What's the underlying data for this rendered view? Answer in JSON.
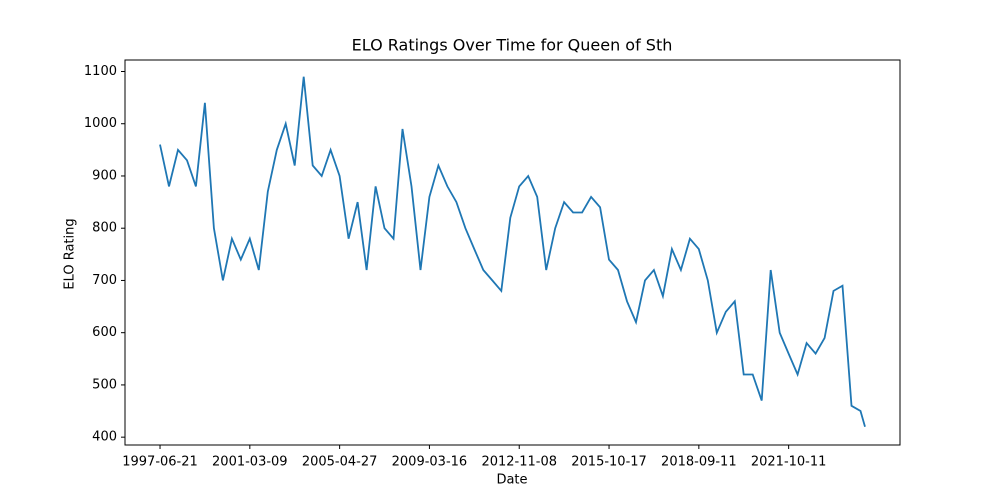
{
  "chart_data": {
    "type": "line",
    "title": "ELO Ratings Over Time for Queen of Sth",
    "x_label": "Date",
    "y_label": "ELO Rating",
    "x": [
      0,
      10,
      20,
      30,
      40,
      50,
      60,
      70,
      80,
      90,
      100,
      110,
      120,
      130,
      140,
      150,
      160,
      170,
      180,
      190,
      200,
      210,
      220,
      230,
      240,
      250,
      260,
      270,
      280,
      290,
      300,
      310,
      320,
      330,
      340,
      350,
      360,
      370,
      380,
      390,
      400,
      410,
      420,
      430,
      440,
      450,
      460,
      470,
      480,
      490,
      500,
      510,
      520,
      530,
      540,
      550,
      560,
      570,
      580,
      590,
      600,
      610,
      620,
      630,
      640,
      650,
      660,
      670,
      680,
      690,
      700,
      710,
      720,
      730,
      740,
      750,
      760,
      770,
      780,
      785
    ],
    "series": [
      {
        "color": "#1f77b4",
        "values": [
          960,
          880,
          950,
          930,
          880,
          1040,
          800,
          700,
          780,
          740,
          780,
          720,
          870,
          950,
          1000,
          920,
          1090,
          920,
          900,
          950,
          900,
          780,
          850,
          720,
          880,
          800,
          780,
          990,
          880,
          720,
          860,
          920,
          880,
          850,
          800,
          760,
          720,
          700,
          680,
          820,
          880,
          900,
          860,
          720,
          800,
          850,
          830,
          830,
          860,
          840,
          740,
          720,
          660,
          620,
          700,
          720,
          670,
          760,
          720,
          780,
          760,
          700,
          600,
          640,
          660,
          520,
          520,
          470,
          720,
          600,
          560,
          520,
          580,
          560,
          590,
          680,
          690,
          460,
          450,
          420
        ]
      }
    ],
    "xlim": [
      -39,
      824
    ],
    "ylim": [
      385,
      1122
    ],
    "xticks": [
      {
        "value": 0,
        "label": "1997-06-21"
      },
      {
        "value": 100,
        "label": "2001-03-09"
      },
      {
        "value": 200,
        "label": "2005-04-27"
      },
      {
        "value": 300,
        "label": "2009-03-16"
      },
      {
        "value": 400,
        "label": "2012-11-08"
      },
      {
        "value": 500,
        "label": "2015-10-17"
      },
      {
        "value": 600,
        "label": "2018-09-11"
      },
      {
        "value": 700,
        "label": "2021-10-11"
      }
    ],
    "yticks": [
      400,
      500,
      600,
      700,
      800,
      900,
      1000,
      1100
    ]
  }
}
